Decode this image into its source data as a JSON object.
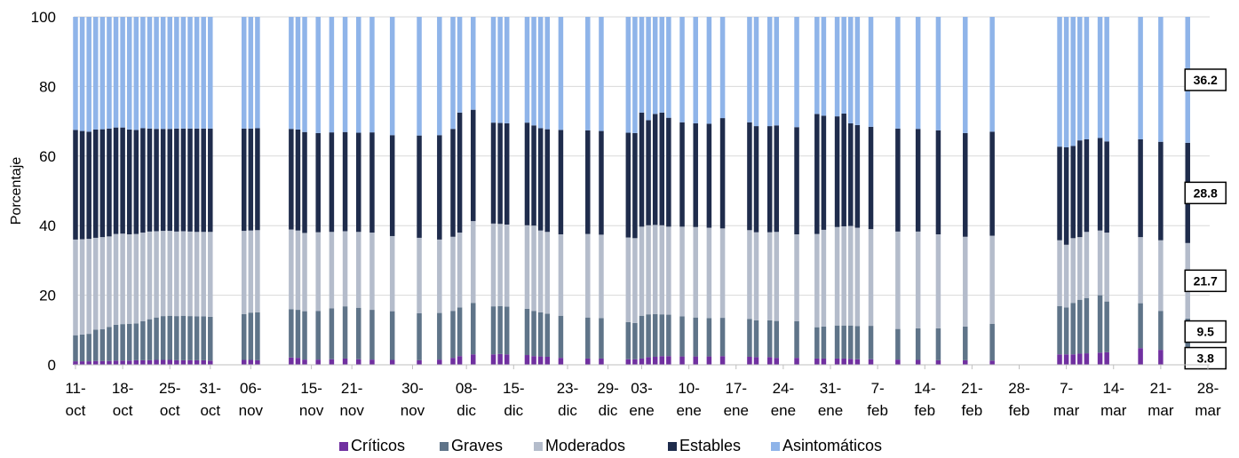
{
  "chart_data": {
    "type": "bar",
    "stacked": true,
    "ylabel": "Porcentaje",
    "ylim": [
      0,
      100
    ],
    "yticks": [
      "0",
      "20",
      "40",
      "60",
      "80",
      "100"
    ],
    "grid": true,
    "legend_position": "bottom",
    "x_tick_labels": [
      [
        "11-",
        "oct"
      ],
      [
        "18-",
        "oct"
      ],
      [
        "25-",
        "oct"
      ],
      [
        "31-",
        "oct"
      ],
      [
        "06-",
        "nov"
      ],
      [
        "15-",
        "nov"
      ],
      [
        "21-",
        "nov"
      ],
      [
        "30-",
        "nov"
      ],
      [
        "08-",
        "dic"
      ],
      [
        "15-",
        "dic"
      ],
      [
        "23-",
        "dic"
      ],
      [
        "29-",
        "dic"
      ],
      [
        "03-",
        "ene"
      ],
      [
        "10-",
        "ene"
      ],
      [
        "17-",
        "ene"
      ],
      [
        "24-",
        "ene"
      ],
      [
        "31-",
        "ene"
      ],
      [
        "7-",
        "feb"
      ],
      [
        "14-",
        "feb"
      ],
      [
        "21-",
        "feb"
      ],
      [
        "28-",
        "feb"
      ],
      [
        "7-",
        "mar"
      ],
      [
        "14-",
        "mar"
      ],
      [
        "21-",
        "mar"
      ],
      [
        "28-",
        "mar"
      ]
    ],
    "x_tick_days": [
      0,
      7,
      14,
      20,
      26,
      35,
      41,
      50,
      58,
      65,
      73,
      79,
      84,
      91,
      98,
      105,
      112,
      119,
      126,
      133,
      140,
      147,
      154,
      161,
      168
    ],
    "series_order": [
      "Críticos",
      "Graves",
      "Moderados",
      "Estables",
      "Asintomáticos"
    ],
    "colors": {
      "Críticos": "#7030a0",
      "Graves": "#5f7489",
      "Moderados": "#b4bccb",
      "Estables": "#1f2c4c",
      "Asintomáticos": "#8fb4e9"
    },
    "records": [
      {
        "date": "11-oct",
        "values": [
          1.0,
          7.5,
          27.5,
          31.5,
          32.5
        ]
      },
      {
        "date": "12-oct",
        "values": [
          1.0,
          7.7,
          27.4,
          31.1,
          32.8
        ]
      },
      {
        "date": "13-oct",
        "values": [
          1.0,
          7.9,
          27.3,
          30.8,
          33.0
        ]
      },
      {
        "date": "14-oct",
        "values": [
          1.1,
          9.0,
          26.4,
          31.1,
          32.4
        ]
      },
      {
        "date": "15-oct",
        "values": [
          1.1,
          9.1,
          26.5,
          31.0,
          32.3
        ]
      },
      {
        "date": "16-oct",
        "values": [
          1.1,
          9.8,
          26.0,
          31.0,
          32.1
        ]
      },
      {
        "date": "17-oct",
        "values": [
          1.2,
          10.3,
          26.1,
          30.6,
          31.8
        ]
      },
      {
        "date": "18-oct",
        "values": [
          1.2,
          10.5,
          26.0,
          30.5,
          31.8
        ]
      },
      {
        "date": "19-oct",
        "values": [
          1.2,
          10.6,
          25.7,
          30.1,
          32.4
        ]
      },
      {
        "date": "20-oct",
        "values": [
          1.3,
          10.6,
          25.7,
          29.9,
          32.5
        ]
      },
      {
        "date": "21-oct",
        "values": [
          1.3,
          11.2,
          25.5,
          30.0,
          32.0
        ]
      },
      {
        "date": "22-oct",
        "values": [
          1.3,
          11.8,
          25.2,
          29.6,
          32.1
        ]
      },
      {
        "date": "23-oct",
        "values": [
          1.4,
          12.2,
          24.8,
          29.4,
          32.2
        ]
      },
      {
        "date": "24-oct",
        "values": [
          1.4,
          12.6,
          24.5,
          29.3,
          32.2
        ]
      },
      {
        "date": "25-oct",
        "values": [
          1.4,
          12.7,
          24.4,
          29.3,
          32.2
        ]
      },
      {
        "date": "26-oct",
        "values": [
          1.3,
          12.7,
          24.3,
          29.6,
          32.1
        ]
      },
      {
        "date": "27-oct",
        "values": [
          1.3,
          12.8,
          24.3,
          29.5,
          32.1
        ]
      },
      {
        "date": "28-oct",
        "values": [
          1.3,
          12.7,
          24.3,
          29.6,
          32.1
        ]
      },
      {
        "date": "29-oct",
        "values": [
          1.3,
          12.6,
          24.3,
          29.7,
          32.1
        ]
      },
      {
        "date": "30-oct",
        "values": [
          1.3,
          12.6,
          24.3,
          29.7,
          32.1
        ]
      },
      {
        "date": "31-oct",
        "values": [
          1.2,
          12.6,
          24.4,
          29.7,
          32.1
        ]
      },
      {
        "date": "05-nov",
        "values": [
          1.4,
          13.2,
          23.9,
          29.4,
          32.1
        ]
      },
      {
        "date": "06-nov",
        "values": [
          1.4,
          13.6,
          23.6,
          29.3,
          32.1
        ]
      },
      {
        "date": "07-nov",
        "values": [
          1.3,
          13.8,
          23.6,
          29.3,
          32.0
        ]
      },
      {
        "date": "12-nov",
        "values": [
          2.1,
          13.9,
          22.9,
          28.9,
          32.2
        ]
      },
      {
        "date": "13-nov",
        "values": [
          2.0,
          13.8,
          22.8,
          29.0,
          32.4
        ]
      },
      {
        "date": "14-nov",
        "values": [
          1.5,
          13.9,
          22.5,
          29.0,
          33.1
        ]
      },
      {
        "date": "16-nov",
        "values": [
          1.5,
          14.0,
          22.6,
          28.5,
          33.4
        ]
      },
      {
        "date": "18-nov",
        "values": [
          1.6,
          14.6,
          22.0,
          28.6,
          33.2
        ]
      },
      {
        "date": "20-nov",
        "values": [
          1.8,
          15.0,
          21.6,
          28.5,
          33.1
        ]
      },
      {
        "date": "22-nov",
        "values": [
          1.6,
          14.8,
          21.8,
          28.5,
          33.3
        ]
      },
      {
        "date": "24-nov",
        "values": [
          1.5,
          14.3,
          22.2,
          28.8,
          33.2
        ]
      },
      {
        "date": "27-nov",
        "values": [
          1.4,
          14.0,
          21.6,
          29.0,
          34.0
        ]
      },
      {
        "date": "01-dic",
        "values": [
          1.3,
          13.5,
          21.7,
          29.4,
          34.1
        ]
      },
      {
        "date": "04-dic",
        "values": [
          1.5,
          13.4,
          21.1,
          30.0,
          34.0
        ]
      },
      {
        "date": "06-dic",
        "values": [
          2.0,
          13.5,
          21.3,
          31.0,
          32.2
        ]
      },
      {
        "date": "07-dic",
        "values": [
          2.5,
          14.0,
          21.5,
          34.5,
          27.5
        ]
      },
      {
        "date": "09-dic",
        "values": [
          3.0,
          14.8,
          23.5,
          32.0,
          26.7
        ]
      },
      {
        "date": "12-dic",
        "values": [
          3.0,
          13.8,
          23.8,
          29.0,
          30.4
        ]
      },
      {
        "date": "13-dic",
        "values": [
          3.1,
          13.8,
          23.6,
          29.0,
          30.5
        ]
      },
      {
        "date": "14-dic",
        "values": [
          3.0,
          13.7,
          23.6,
          29.1,
          30.6
        ]
      },
      {
        "date": "17-dic",
        "values": [
          2.8,
          13.3,
          24.0,
          29.5,
          30.4
        ]
      },
      {
        "date": "18-dic",
        "values": [
          2.5,
          13.0,
          24.5,
          28.8,
          31.2
        ]
      },
      {
        "date": "19-dic",
        "values": [
          2.4,
          12.7,
          23.5,
          29.4,
          32.0
        ]
      },
      {
        "date": "20-dic",
        "values": [
          2.3,
          12.4,
          23.5,
          29.5,
          32.3
        ]
      },
      {
        "date": "22-dic",
        "values": [
          2.0,
          12.1,
          23.4,
          30.0,
          32.5
        ]
      },
      {
        "date": "26-dic",
        "values": [
          1.8,
          11.8,
          24.0,
          29.8,
          32.6
        ]
      },
      {
        "date": "28-dic",
        "values": [
          1.8,
          11.6,
          24.0,
          29.8,
          32.8
        ]
      },
      {
        "date": "01-ene",
        "values": [
          1.6,
          10.7,
          24.3,
          30.1,
          33.3
        ]
      },
      {
        "date": "02-ene",
        "values": [
          1.6,
          10.4,
          24.4,
          30.2,
          33.4
        ]
      },
      {
        "date": "03-ene",
        "values": [
          1.8,
          12.3,
          25.6,
          32.8,
          27.5
        ]
      },
      {
        "date": "04-ene",
        "values": [
          2.2,
          12.3,
          25.6,
          30.2,
          29.7
        ]
      },
      {
        "date": "05-ene",
        "values": [
          2.3,
          12.3,
          25.6,
          31.9,
          27.9
        ]
      },
      {
        "date": "06-ene",
        "values": [
          2.5,
          12.0,
          25.6,
          32.4,
          27.5
        ]
      },
      {
        "date": "07-ene",
        "values": [
          2.5,
          11.9,
          25.3,
          31.3,
          29.0
        ]
      },
      {
        "date": "09-ene",
        "values": [
          2.4,
          11.5,
          25.8,
          30.0,
          30.3
        ]
      },
      {
        "date": "11-ene",
        "values": [
          2.4,
          11.2,
          26.0,
          29.8,
          30.6
        ]
      },
      {
        "date": "13-ene",
        "values": [
          2.4,
          11.0,
          26.0,
          29.9,
          30.7
        ]
      },
      {
        "date": "15-ene",
        "values": [
          2.5,
          11.0,
          25.7,
          31.7,
          29.1
        ]
      },
      {
        "date": "19-ene",
        "values": [
          2.3,
          10.9,
          25.5,
          31.0,
          30.3
        ]
      },
      {
        "date": "20-ene",
        "values": [
          2.2,
          10.6,
          25.3,
          30.5,
          31.4
        ]
      },
      {
        "date": "22-ene",
        "values": [
          2.2,
          10.6,
          25.3,
          30.5,
          31.4
        ]
      },
      {
        "date": "23-ene",
        "values": [
          2.0,
          10.6,
          25.6,
          30.6,
          31.2
        ]
      },
      {
        "date": "26-ene",
        "values": [
          2.0,
          10.5,
          25.0,
          30.8,
          31.7
        ]
      },
      {
        "date": "29-ene",
        "values": [
          1.8,
          9.0,
          26.8,
          34.5,
          27.9
        ]
      },
      {
        "date": "30-ene",
        "values": [
          1.8,
          9.2,
          27.8,
          32.8,
          28.4
        ]
      },
      {
        "date": "01-feb",
        "values": [
          1.8,
          9.5,
          28.3,
          31.8,
          28.6
        ]
      },
      {
        "date": "02-feb",
        "values": [
          1.8,
          9.5,
          28.5,
          32.4,
          27.8
        ]
      },
      {
        "date": "03-feb",
        "values": [
          1.7,
          9.6,
          28.6,
          29.5,
          30.6
        ]
      },
      {
        "date": "04-feb",
        "values": [
          1.6,
          9.5,
          28.3,
          29.5,
          31.1
        ]
      },
      {
        "date": "06-feb",
        "values": [
          1.6,
          9.6,
          27.8,
          29.4,
          31.6
        ]
      },
      {
        "date": "10-feb",
        "values": [
          1.5,
          8.8,
          28.0,
          29.6,
          32.1
        ]
      },
      {
        "date": "13-feb",
        "values": [
          1.4,
          9.1,
          27.8,
          29.5,
          32.2
        ]
      },
      {
        "date": "16-feb",
        "values": [
          1.3,
          9.2,
          27.0,
          29.9,
          32.6
        ]
      },
      {
        "date": "20-feb",
        "values": [
          1.3,
          9.7,
          25.8,
          29.8,
          33.4
        ]
      },
      {
        "date": "24-feb",
        "values": [
          1.2,
          10.6,
          25.3,
          29.9,
          33.0
        ]
      },
      {
        "date": "06-mar",
        "values": [
          3.0,
          13.9,
          18.9,
          26.9,
          37.3
        ]
      },
      {
        "date": "07-mar",
        "values": [
          3.0,
          13.5,
          18.0,
          28.0,
          37.5
        ]
      },
      {
        "date": "08-mar",
        "values": [
          3.0,
          14.8,
          18.6,
          26.5,
          37.1
        ]
      },
      {
        "date": "09-mar",
        "values": [
          3.2,
          15.5,
          18.0,
          27.8,
          35.5
        ]
      },
      {
        "date": "10-mar",
        "values": [
          3.3,
          15.9,
          19.0,
          26.6,
          35.2
        ]
      },
      {
        "date": "12-mar",
        "values": [
          3.5,
          16.5,
          18.6,
          26.6,
          34.8
        ]
      },
      {
        "date": "13-mar",
        "values": [
          3.6,
          14.6,
          19.8,
          26.2,
          35.8
        ]
      },
      {
        "date": "18-mar",
        "values": [
          4.8,
          12.9,
          19.0,
          28.1,
          35.2
        ]
      },
      {
        "date": "21-mar",
        "values": [
          4.3,
          11.2,
          20.3,
          28.3,
          35.9
        ]
      },
      {
        "date": "25-mar",
        "values": [
          3.8,
          9.5,
          21.7,
          28.8,
          36.2
        ]
      }
    ],
    "annotations": [
      {
        "series": "Asintomáticos",
        "text": "36.2"
      },
      {
        "series": "Estables",
        "text": "28.8"
      },
      {
        "series": "Moderados",
        "text": "21.7"
      },
      {
        "series": "Graves",
        "text": "9.5"
      },
      {
        "series": "Críticos",
        "text": "3.8"
      }
    ],
    "legend": [
      "Críticos",
      "Graves",
      "Moderados",
      "Estables",
      "Asintomáticos"
    ]
  }
}
